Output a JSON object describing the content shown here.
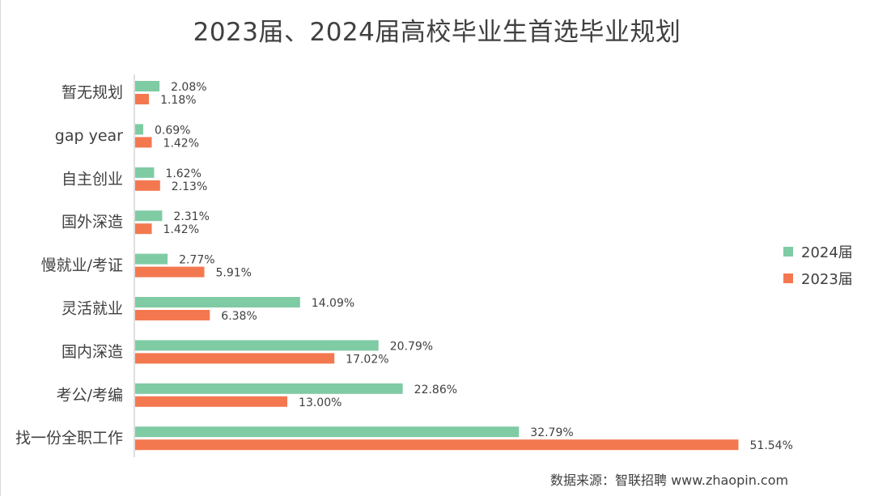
{
  "chart_data": {
    "type": "bar",
    "orientation": "horizontal",
    "title": "2023届、2024届高校毕业生首选毕业规划",
    "categories": [
      "暂无规划",
      "gap year",
      "自主创业",
      "国外深造",
      "慢就业/考证",
      "灵活就业",
      "国内深造",
      "考公/考编",
      "找一份全职工作"
    ],
    "series": [
      {
        "name": "2024届",
        "color": "#7fcba4",
        "values": [
          2.08,
          0.69,
          1.62,
          2.31,
          2.77,
          14.09,
          20.79,
          22.86,
          32.79
        ],
        "labels": [
          "2.08%",
          "0.69%",
          "1.62%",
          "2.31%",
          "2.77%",
          "14.09%",
          "20.79%",
          "22.86%",
          "32.79%"
        ]
      },
      {
        "name": "2023届",
        "color": "#f4784f",
        "values": [
          1.18,
          1.42,
          2.13,
          1.42,
          5.91,
          6.38,
          17.02,
          13.0,
          51.54
        ],
        "labels": [
          "1.18%",
          "1.42%",
          "2.13%",
          "1.42%",
          "5.91%",
          "6.38%",
          "17.02%",
          "13.00%",
          "51.54%"
        ]
      }
    ],
    "xlim": [
      0,
      55
    ],
    "grid": false,
    "legend": "right"
  },
  "source": "数据来源：智联招聘 www.zhaopin.com"
}
